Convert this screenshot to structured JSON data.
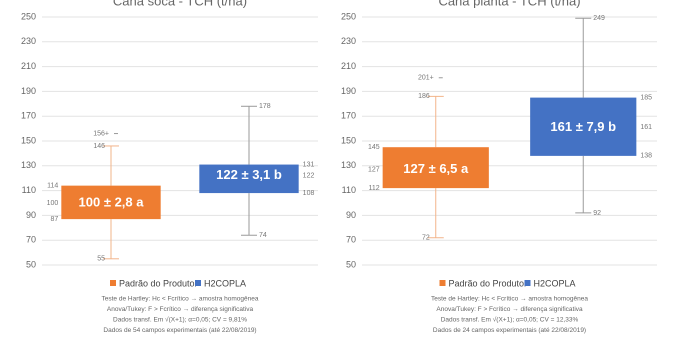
{
  "chart_data": [
    {
      "type": "box",
      "title": "Cana soca - TCH (t/ha)",
      "ylim": [
        50,
        250
      ],
      "yticks": [
        50,
        70,
        90,
        110,
        130,
        150,
        170,
        190,
        210,
        230,
        250
      ],
      "grid": true,
      "series": [
        {
          "name": "Padrão do Produtor",
          "color": "#ee7d31",
          "min": 55,
          "q1": 87,
          "mid": 100,
          "q3": 114,
          "max": 146,
          "outlier": 156,
          "outlier_label": "156+",
          "box_label": "100 ± 2,8 a"
        },
        {
          "name": "H2COPLA",
          "color": "#4472c4",
          "min": 74,
          "q1": 108,
          "mid": 122,
          "q3": 131,
          "max": 178,
          "box_label": "122 ± 3,1 b"
        }
      ],
      "notes": [
        "Teste de Hartley: Hc < Fcrítico → amostra homogênea",
        "Anova/Tukey: F > Fcrítico → diferença significativa",
        "Dados transf. Em √(X+1); α=0,05; CV = 9,81%",
        "Dados de 54 campos experimentais (até 22/08/2019)"
      ]
    },
    {
      "type": "box",
      "title": "Cana planta - TCH (t/ha)",
      "ylim": [
        50,
        250
      ],
      "yticks": [
        50,
        70,
        90,
        110,
        130,
        150,
        170,
        190,
        210,
        230,
        250
      ],
      "grid": true,
      "series": [
        {
          "name": "Padrão do Produtor",
          "color": "#ee7d31",
          "min": 72,
          "q1": 112,
          "mid": 127,
          "q3": 145,
          "max": 186,
          "outlier": 201,
          "outlier_label": "201+",
          "box_label": "127 ± 6,5 a"
        },
        {
          "name": "H2COPLA",
          "color": "#4472c4",
          "min": 92,
          "q1": 138,
          "mid": 161,
          "q3": 185,
          "max": 249,
          "box_label": "161 ± 7,9 b"
        }
      ],
      "notes": [
        "Teste de Hartley: Hc < Fcrítico → amostra homogênea",
        "Anova/Tukey: F > Fcrítico → diferença significativa",
        "Dados transf. Em √(X+1); α=0,05; CV = 12,33%",
        "Dados de 24 campos experimentais (até 22/08/2019)"
      ]
    }
  ]
}
